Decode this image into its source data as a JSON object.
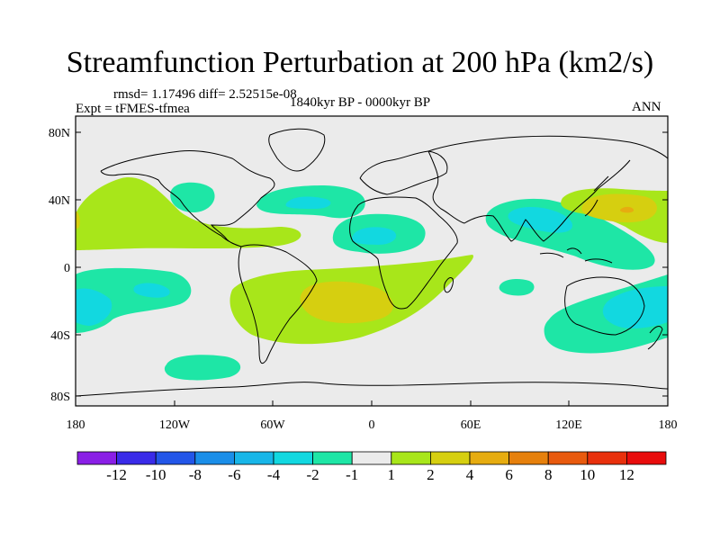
{
  "title": "Streamfunction Perturbation at 200 hPa (km2/s)",
  "stats": "rmsd= 1.17496 diff= 2.52515e-08",
  "experiment": "Expt = tFMES-tfmea",
  "period": "1840kyr BP - 0000kyr BP",
  "season": "ANN",
  "lat_labels": [
    "80N",
    "40N",
    "0",
    "40S",
    "80S"
  ],
  "lon_labels": [
    "180",
    "120W",
    "60W",
    "0",
    "60E",
    "120E",
    "180"
  ],
  "colorbar": {
    "labels": [
      "-12",
      "-10",
      "-8",
      "-6",
      "-4",
      "-2",
      "-1",
      "1",
      "2",
      "4",
      "6",
      "8",
      "10",
      "12"
    ],
    "colors": [
      "#8a1fe6",
      "#3a2be8",
      "#2356e8",
      "#1a8ee8",
      "#18b6e8",
      "#12d8e0",
      "#1ee6a6",
      "#ebebeb",
      "#a8e61a",
      "#d6cf10",
      "#e6ac10",
      "#e6800c",
      "#e85a0e",
      "#e8300c",
      "#e80c0c"
    ]
  },
  "colors": {
    "land_fill": "#ebebeb",
    "coast": "#000000"
  }
}
